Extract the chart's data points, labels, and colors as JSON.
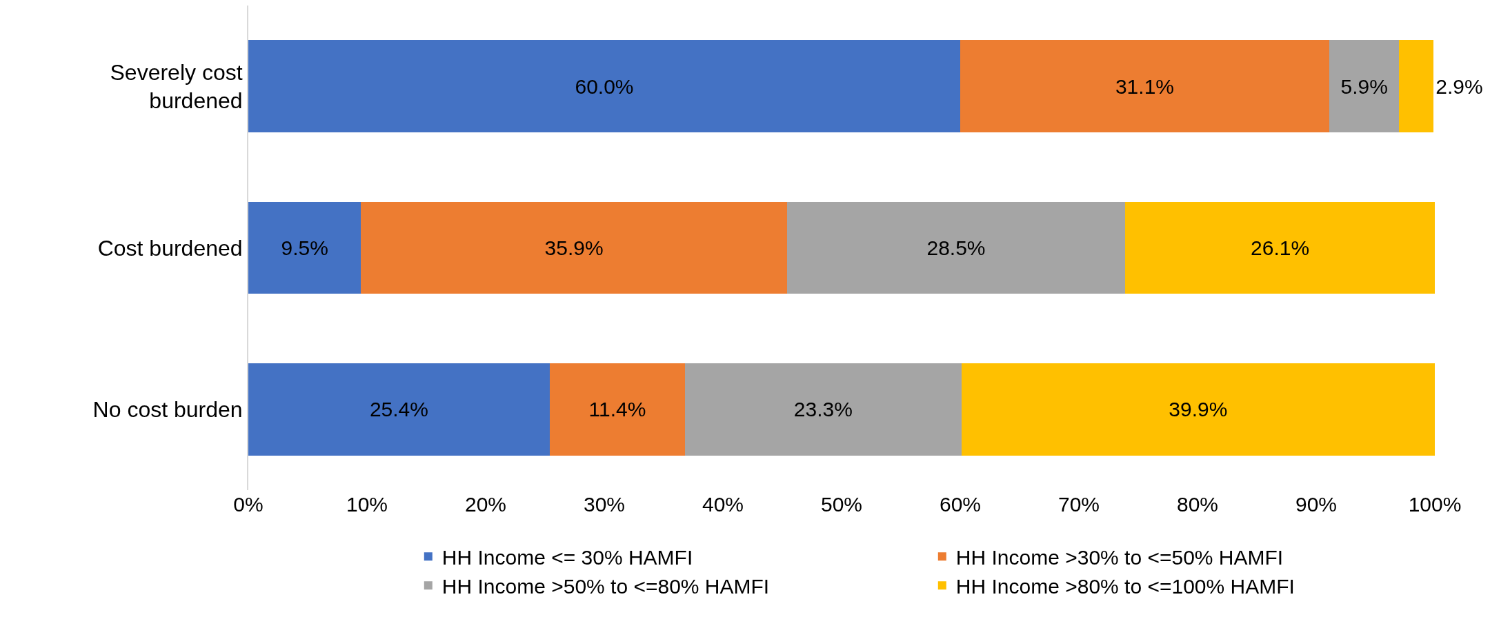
{
  "chart_data": {
    "type": "bar",
    "orientation": "horizontal",
    "stacked": true,
    "categories": [
      "Severely cost burdened",
      "Cost burdened",
      "No cost burden"
    ],
    "series": [
      {
        "name": "HH Income <= 30% HAMFI",
        "color": "#4472c4",
        "values": [
          60.0,
          9.5,
          25.4
        ],
        "value_labels": [
          "60.0%",
          "9.5%",
          "25.4%"
        ]
      },
      {
        "name": "HH Income >30% to <=50% HAMFI",
        "color": "#ed7d31",
        "values": [
          31.1,
          35.9,
          11.4
        ],
        "value_labels": [
          "31.1%",
          "35.9%",
          "11.4%"
        ]
      },
      {
        "name": "HH Income >50% to <=80% HAMFI",
        "color": "#a5a5a5",
        "values": [
          5.9,
          28.5,
          23.3
        ],
        "value_labels": [
          "5.9%",
          "28.5%",
          "23.3%"
        ]
      },
      {
        "name": "HH Income >80% to <=100% HAMFI",
        "color": "#ffc000",
        "values": [
          2.9,
          26.1,
          39.9
        ],
        "value_labels": [
          "2.9%",
          "26.1%",
          "39.9%"
        ]
      }
    ],
    "xlim": [
      0,
      100
    ],
    "xticks": [
      {
        "value": 0,
        "label": "0%"
      },
      {
        "value": 10,
        "label": "10%"
      },
      {
        "value": 20,
        "label": "20%"
      },
      {
        "value": 30,
        "label": "30%"
      },
      {
        "value": 40,
        "label": "40%"
      },
      {
        "value": 50,
        "label": "50%"
      },
      {
        "value": 60,
        "label": "60%"
      },
      {
        "value": 70,
        "label": "70%"
      },
      {
        "value": 80,
        "label": "80%"
      },
      {
        "value": 90,
        "label": "90%"
      },
      {
        "value": 100,
        "label": "100%"
      }
    ],
    "grid": false,
    "legend": "bottom"
  }
}
